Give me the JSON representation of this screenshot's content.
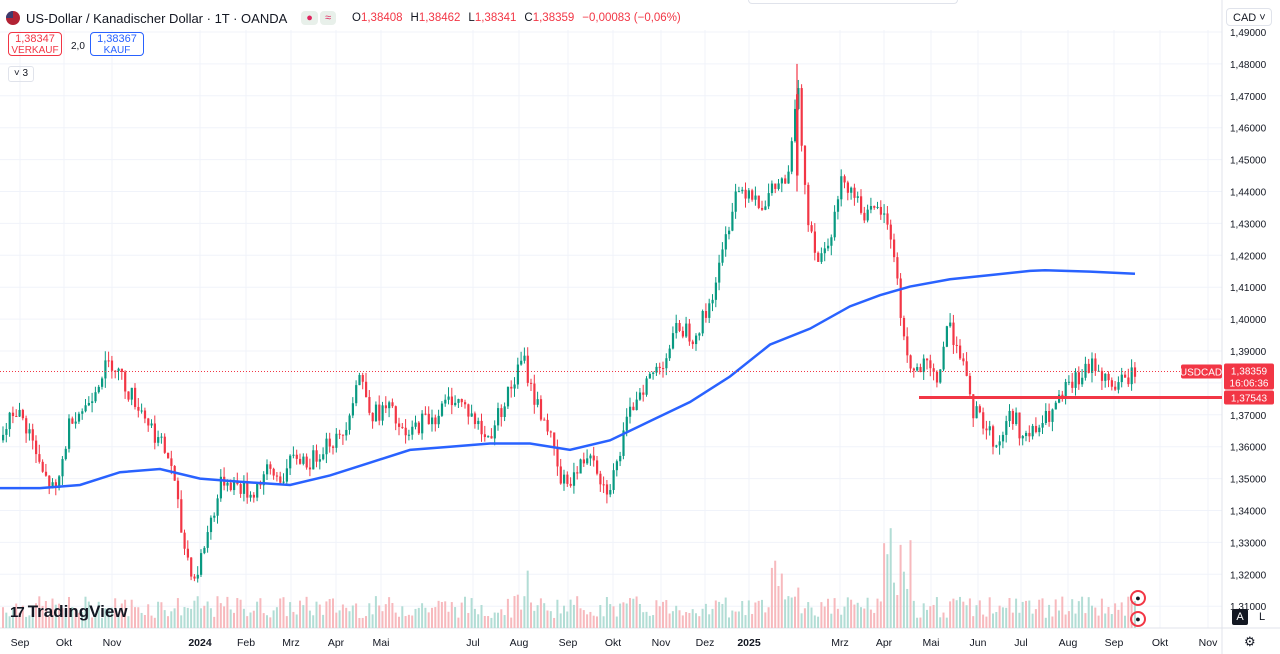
{
  "header": {
    "symbol_title": "US-Dollar / Kanadischer Dollar · 1T · OANDA",
    "pill": [
      "●",
      "≈"
    ],
    "ohlc": [
      {
        "label": "O",
        "value": "1,38408"
      },
      {
        "label": "H",
        "value": "1,38462"
      },
      {
        "label": "L",
        "value": "1,38341"
      },
      {
        "label": "C",
        "value": "1,38359"
      },
      {
        "label": "",
        "value": "−0,00083 (−0,06%)"
      }
    ]
  },
  "trade": {
    "sell_price": "1,38347",
    "sell_label": "VERKAUF",
    "spread": "2,0",
    "buy_price": "1,38367",
    "buy_label": "KAUF",
    "collapse_label": "˅ 3"
  },
  "currency": "CAD ˅",
  "logo_text": "TradingView",
  "logo_mark": "17",
  "buttons": {
    "auto": "A",
    "log": "L",
    "settings": "⚙"
  },
  "badges": {
    "ca": "ca-flag-icon",
    "us": "us-flag-icon"
  },
  "colors": {
    "up": "#089981",
    "down": "#f23645",
    "ma": "#2962ff",
    "support": "#f23645"
  },
  "chart_data": {
    "type": "candlestick",
    "symbol_label": "USDCAD",
    "last_price": "1,38359",
    "countdown": "16:06:36",
    "support_level_label": "1,37543",
    "support_level": 1.37543,
    "ylim": [
      1.305,
      1.49
    ],
    "y_ticks": [
      "1,49000",
      "1,48000",
      "1,47000",
      "1,46000",
      "1,45000",
      "1,44000",
      "1,43000",
      "1,42000",
      "1,41000",
      "1,40000",
      "1,39000",
      "1,38000",
      "1,37000",
      "1,36000",
      "1,35000",
      "1,34000",
      "1,33000",
      "1,32000",
      "1,31000"
    ],
    "x_ticks": [
      "Sep",
      "Okt",
      "Nov",
      "2024",
      "Feb",
      "Mrz",
      "Apr",
      "Mai",
      "Jul",
      "Aug",
      "Sep",
      "Okt",
      "Nov",
      "Dez",
      "2025",
      "Mrz",
      "Apr",
      "Mai",
      "Jun",
      "Jul",
      "Aug",
      "Sep",
      "Okt",
      "Nov"
    ],
    "price_path": [
      [
        0,
        1.362
      ],
      [
        14,
        1.372
      ],
      [
        28,
        1.365
      ],
      [
        40,
        1.352
      ],
      [
        55,
        1.345
      ],
      [
        70,
        1.37
      ],
      [
        84,
        1.372
      ],
      [
        100,
        1.383
      ],
      [
        112,
        1.387
      ],
      [
        126,
        1.378
      ],
      [
        140,
        1.372
      ],
      [
        154,
        1.364
      ],
      [
        170,
        1.355
      ],
      [
        182,
        1.33
      ],
      [
        194,
        1.318
      ],
      [
        208,
        1.335
      ],
      [
        222,
        1.35
      ],
      [
        236,
        1.348
      ],
      [
        250,
        1.345
      ],
      [
        265,
        1.352
      ],
      [
        280,
        1.35
      ],
      [
        295,
        1.357
      ],
      [
        310,
        1.355
      ],
      [
        326,
        1.362
      ],
      [
        340,
        1.362
      ],
      [
        358,
        1.383
      ],
      [
        372,
        1.37
      ],
      [
        388,
        1.372
      ],
      [
        404,
        1.362
      ],
      [
        420,
        1.368
      ],
      [
        436,
        1.37
      ],
      [
        452,
        1.376
      ],
      [
        468,
        1.371
      ],
      [
        486,
        1.362
      ],
      [
        500,
        1.372
      ],
      [
        514,
        1.381
      ],
      [
        522,
        1.388
      ],
      [
        532,
        1.376
      ],
      [
        546,
        1.367
      ],
      [
        560,
        1.348
      ],
      [
        576,
        1.352
      ],
      [
        590,
        1.36
      ],
      [
        604,
        1.346
      ],
      [
        614,
        1.352
      ],
      [
        624,
        1.365
      ],
      [
        636,
        1.377
      ],
      [
        650,
        1.382
      ],
      [
        664,
        1.388
      ],
      [
        678,
        1.398
      ],
      [
        692,
        1.395
      ],
      [
        706,
        1.402
      ],
      [
        720,
        1.418
      ],
      [
        734,
        1.44
      ],
      [
        748,
        1.441
      ],
      [
        762,
        1.436
      ],
      [
        776,
        1.442
      ],
      [
        788,
        1.444
      ],
      [
        796,
        1.475
      ],
      [
        806,
        1.434
      ],
      [
        818,
        1.418
      ],
      [
        832,
        1.43
      ],
      [
        842,
        1.445
      ],
      [
        852,
        1.44
      ],
      [
        866,
        1.432
      ],
      [
        880,
        1.434
      ],
      [
        892,
        1.424
      ],
      [
        900,
        1.4
      ],
      [
        910,
        1.383
      ],
      [
        924,
        1.385
      ],
      [
        936,
        1.38
      ],
      [
        946,
        1.398
      ],
      [
        958,
        1.392
      ],
      [
        970,
        1.372
      ],
      [
        982,
        1.368
      ],
      [
        996,
        1.36
      ],
      [
        1010,
        1.371
      ],
      [
        1024,
        1.362
      ],
      [
        1038,
        1.366
      ],
      [
        1052,
        1.371
      ],
      [
        1066,
        1.378
      ],
      [
        1080,
        1.382
      ],
      [
        1094,
        1.386
      ],
      [
        1108,
        1.379
      ],
      [
        1120,
        1.38
      ],
      [
        1134,
        1.3836
      ]
    ],
    "ma_path": [
      [
        0,
        1.347
      ],
      [
        40,
        1.347
      ],
      [
        80,
        1.348
      ],
      [
        120,
        1.352
      ],
      [
        160,
        1.353
      ],
      [
        200,
        1.35
      ],
      [
        240,
        1.349
      ],
      [
        290,
        1.348
      ],
      [
        330,
        1.351
      ],
      [
        370,
        1.355
      ],
      [
        410,
        1.359
      ],
      [
        450,
        1.36
      ],
      [
        490,
        1.361
      ],
      [
        530,
        1.361
      ],
      [
        570,
        1.359
      ],
      [
        610,
        1.362
      ],
      [
        650,
        1.368
      ],
      [
        690,
        1.374
      ],
      [
        730,
        1.382
      ],
      [
        770,
        1.392
      ],
      [
        810,
        1.397
      ],
      [
        850,
        1.404
      ],
      [
        880,
        1.4075
      ],
      [
        910,
        1.4102
      ],
      [
        950,
        1.4125
      ],
      [
        990,
        1.4138
      ],
      [
        1030,
        1.4151
      ],
      [
        1045,
        1.4153
      ],
      [
        1090,
        1.4149
      ],
      [
        1135,
        1.4142
      ]
    ]
  }
}
